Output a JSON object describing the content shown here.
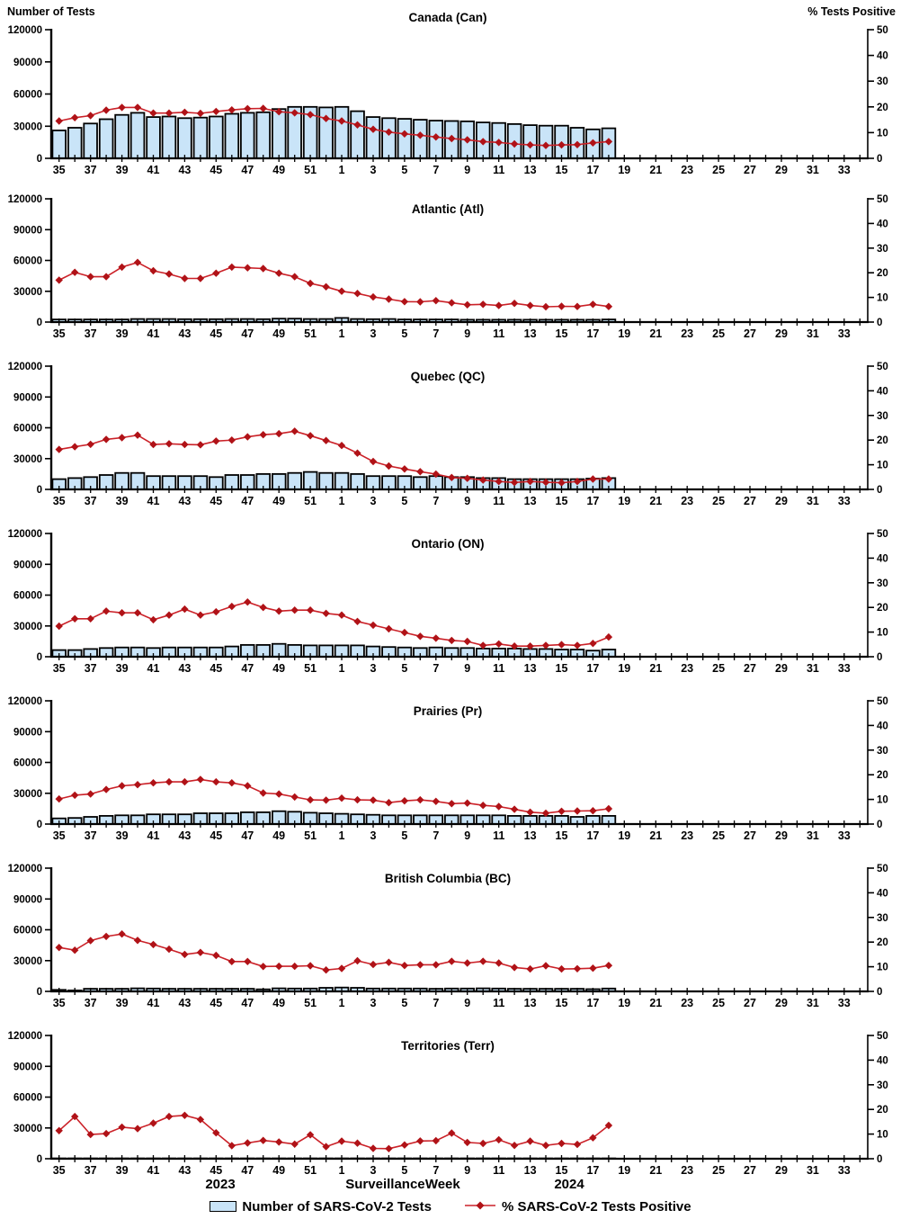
{
  "header": {
    "left_axis_title": "Number of Tests",
    "right_axis_title": "% Tests Positive"
  },
  "footer": {
    "year_left": "2023",
    "axis_title": "Surveillance Week",
    "year_right": "2024"
  },
  "legend": {
    "bars_label": "Number of SARS-CoV-2 Tests",
    "line_label": "% SARS-CoV-2 Tests Positive"
  },
  "chart_data": {
    "type": "bar",
    "subtype": "dual-axis bar + line, 7 stacked regional panels",
    "x_label_rule": "ticks every week, labels on odd weeks only",
    "weeks": [
      35,
      36,
      37,
      38,
      39,
      40,
      41,
      42,
      43,
      44,
      45,
      46,
      47,
      48,
      49,
      50,
      51,
      52,
      1,
      2,
      3,
      4,
      5,
      6,
      7,
      8,
      9,
      10,
      11,
      12,
      13,
      14,
      15,
      16,
      17,
      18,
      19,
      20,
      21,
      22,
      23,
      24,
      25,
      26,
      27,
      28,
      29,
      30,
      31,
      32,
      33,
      34
    ],
    "left_axis": {
      "title": "Number of Tests",
      "ticks": [
        0,
        30000,
        60000,
        90000,
        120000
      ],
      "max": 120000
    },
    "right_axis": {
      "title": "% Tests Positive",
      "ticks": [
        0,
        10,
        20,
        30,
        40,
        50
      ],
      "max": 50
    },
    "style": {
      "bar_fill": "#C9E4F8",
      "bar_stroke": "#000000",
      "line_color": "#CB2128",
      "marker_color": "#B01217"
    },
    "panels": [
      {
        "region": "Canada (Can)",
        "bars": [
          26000,
          28500,
          32500,
          36500,
          40500,
          42500,
          38500,
          39000,
          37500,
          38000,
          39000,
          41500,
          42500,
          43000,
          46000,
          48000,
          48000,
          47500,
          48000,
          44000,
          38500,
          37500,
          36800,
          36000,
          35200,
          34800,
          34500,
          33500,
          33000,
          32000,
          31000,
          30500,
          30500,
          28500,
          27000,
          28000
        ],
        "line": [
          14.5,
          15.8,
          16.6,
          18.7,
          19.8,
          19.8,
          17.6,
          17.6,
          17.9,
          17.5,
          18.2,
          18.8,
          19.3,
          19.4,
          18.1,
          17.7,
          17.0,
          15.5,
          14.5,
          13.0,
          11.3,
          10.2,
          9.5,
          9.0,
          8.3,
          7.7,
          7.2,
          6.5,
          6.2,
          5.6,
          5.2,
          5.0,
          5.2,
          5.3,
          6.0,
          6.5
        ]
      },
      {
        "region": "Atlantic (Atl)",
        "bars": [
          2500,
          2500,
          2500,
          2500,
          2500,
          3000,
          3000,
          3000,
          2800,
          2800,
          2800,
          3000,
          3000,
          2800,
          3300,
          3300,
          3000,
          3000,
          4000,
          3000,
          2800,
          3000,
          2500,
          2500,
          2500,
          2500,
          2300,
          2300,
          2300,
          2300,
          2300,
          2300,
          2300,
          2300,
          2300,
          2500
        ],
        "line": [
          17.0,
          20.2,
          18.4,
          18.4,
          22.3,
          24.2,
          20.8,
          19.5,
          17.7,
          17.7,
          19.8,
          22.3,
          22.0,
          21.7,
          19.8,
          18.4,
          15.7,
          14.3,
          12.5,
          11.6,
          10.2,
          9.3,
          8.3,
          8.2,
          8.7,
          7.8,
          7.0,
          7.2,
          6.7,
          7.6,
          6.7,
          6.2,
          6.4,
          6.3,
          7.2,
          6.3
        ]
      },
      {
        "region": "Quebec (QC)",
        "bars": [
          10000,
          11000,
          12000,
          14000,
          16000,
          16000,
          13000,
          13000,
          13000,
          13000,
          12000,
          14000,
          14000,
          15000,
          15000,
          16000,
          17000,
          16000,
          16000,
          15000,
          13000,
          13000,
          13000,
          12000,
          13000,
          12000,
          12000,
          11000,
          11000,
          10000,
          10000,
          10000,
          10000,
          10000,
          10500,
          11000
        ],
        "line": [
          16.2,
          17.3,
          18.3,
          20.3,
          21.0,
          22.0,
          18.2,
          18.5,
          18.2,
          18.1,
          19.6,
          20.0,
          21.3,
          22.2,
          22.6,
          23.6,
          21.8,
          19.8,
          17.8,
          14.7,
          11.3,
          9.5,
          8.3,
          7.2,
          6.2,
          4.8,
          4.5,
          3.8,
          3.2,
          2.8,
          3.2,
          2.9,
          2.7,
          3.2,
          4.2,
          4.2
        ]
      },
      {
        "region": "Ontario (ON)",
        "bars": [
          6500,
          6500,
          7500,
          8500,
          9000,
          9000,
          8500,
          9000,
          9000,
          9000,
          9000,
          10000,
          11500,
          11500,
          12500,
          11500,
          11000,
          11000,
          11000,
          11000,
          10000,
          9500,
          9000,
          8500,
          9000,
          8500,
          8500,
          8000,
          8000,
          8000,
          7500,
          7500,
          7000,
          7000,
          6000,
          7000
        ],
        "line": [
          12.4,
          15.4,
          15.4,
          18.5,
          17.8,
          17.8,
          15.0,
          16.9,
          19.3,
          16.9,
          18.2,
          20.4,
          22.2,
          20.0,
          18.5,
          18.9,
          18.9,
          17.6,
          16.9,
          14.3,
          12.8,
          11.3,
          9.8,
          8.3,
          7.5,
          6.6,
          6.2,
          4.6,
          5.2,
          4.3,
          4.3,
          4.6,
          4.9,
          4.6,
          5.4,
          8.0
        ]
      },
      {
        "region": "Prairies (Pr)",
        "bars": [
          5500,
          6000,
          7000,
          8000,
          8500,
          8500,
          9500,
          9500,
          9500,
          10500,
          10500,
          10500,
          11500,
          11500,
          12500,
          12000,
          11000,
          10500,
          10000,
          9500,
          9000,
          8500,
          8500,
          8500,
          8500,
          8500,
          8500,
          8500,
          8500,
          8000,
          8000,
          8000,
          8000,
          7000,
          8000,
          8000
        ],
        "line": [
          10.2,
          11.7,
          12.2,
          14.0,
          15.5,
          16.0,
          16.7,
          17.1,
          17.1,
          18.1,
          17.1,
          16.7,
          15.5,
          12.6,
          12.2,
          11.0,
          9.8,
          9.7,
          10.5,
          9.8,
          9.7,
          8.7,
          9.4,
          9.8,
          9.2,
          8.3,
          8.5,
          7.6,
          7.1,
          6.0,
          4.8,
          4.4,
          5.2,
          5.3,
          5.4,
          6.2
        ]
      },
      {
        "region": "British Columbia (BC)",
        "bars": [
          1500,
          1000,
          2500,
          2500,
          2500,
          3000,
          2800,
          2500,
          2500,
          2500,
          2500,
          2500,
          2500,
          2000,
          3000,
          2800,
          2800,
          3500,
          3800,
          3500,
          2800,
          2800,
          2800,
          2800,
          2500,
          2800,
          2800,
          3000,
          2800,
          2500,
          2500,
          2500,
          2500,
          2500,
          2200,
          2800
        ],
        "line": [
          17.8,
          16.7,
          20.6,
          22.3,
          23.3,
          20.7,
          19.0,
          17.1,
          15.0,
          15.8,
          14.6,
          12.1,
          12.1,
          10.1,
          10.2,
          10.2,
          10.4,
          8.7,
          9.3,
          12.4,
          10.9,
          11.8,
          10.5,
          10.8,
          10.8,
          12.2,
          11.5,
          12.2,
          11.5,
          9.7,
          9.1,
          10.4,
          9.1,
          9.2,
          9.4,
          10.5
        ]
      },
      {
        "region": "Territories (Terr)",
        "bars": [
          200,
          200,
          200,
          200,
          200,
          200,
          200,
          200,
          200,
          200,
          200,
          200,
          200,
          200,
          200,
          200,
          200,
          200,
          200,
          200,
          200,
          200,
          200,
          200,
          200,
          200,
          200,
          200,
          200,
          200,
          200,
          200,
          200,
          200,
          200,
          200
        ],
        "line": [
          11.4,
          17.1,
          9.8,
          10.2,
          12.8,
          12.2,
          14.4,
          17.1,
          17.6,
          15.9,
          10.5,
          5.3,
          6.4,
          7.4,
          6.8,
          5.9,
          9.7,
          4.9,
          7.1,
          6.3,
          4.2,
          4.1,
          5.6,
          7.2,
          7.3,
          10.4,
          6.6,
          6.2,
          7.7,
          5.4,
          7.1,
          5.4,
          6.2,
          5.8,
          8.5,
          13.5
        ]
      }
    ]
  }
}
